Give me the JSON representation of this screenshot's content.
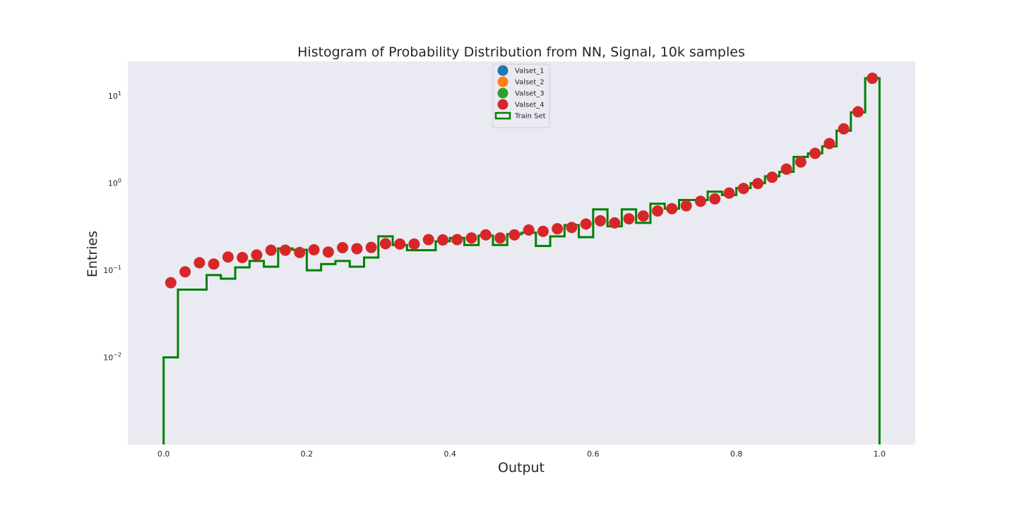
{
  "chart_data": {
    "type": "scatter",
    "title": "Histogram of Probability Distribution from NN, Signal, 10k samples",
    "xlabel": "Output",
    "ylabel": "Entries",
    "xlim": [
      -0.05,
      1.05
    ],
    "ylim": [
      0.001,
      25
    ],
    "yscale": "log",
    "grid": false,
    "background_color": "#eaeaf2",
    "legend_position": "top-center",
    "x_ticks": [
      {
        "value": 0.0,
        "label": "0.0"
      },
      {
        "value": 0.2,
        "label": "0.2"
      },
      {
        "value": 0.4,
        "label": "0.4"
      },
      {
        "value": 0.6,
        "label": "0.6"
      },
      {
        "value": 0.8,
        "label": "0.8"
      },
      {
        "value": 1.0,
        "label": "1.0"
      }
    ],
    "y_ticks": [
      {
        "value": 0.01,
        "base": "10",
        "exp": "−2"
      },
      {
        "value": 0.1,
        "base": "10",
        "exp": "−1"
      },
      {
        "value": 1,
        "base": "10",
        "exp": "0"
      },
      {
        "value": 10,
        "base": "10",
        "exp": "1"
      }
    ],
    "bin_edges": [
      0.0,
      0.02,
      0.04,
      0.06,
      0.08,
      0.1,
      0.12,
      0.14,
      0.16,
      0.18,
      0.2,
      0.22,
      0.24,
      0.26,
      0.28,
      0.3,
      0.32,
      0.34,
      0.36,
      0.38,
      0.4,
      0.42,
      0.44,
      0.46,
      0.48,
      0.5,
      0.52,
      0.54,
      0.56,
      0.58,
      0.6,
      0.62,
      0.64,
      0.66,
      0.68,
      0.7,
      0.72,
      0.74,
      0.76,
      0.78,
      0.8,
      0.82,
      0.84,
      0.86,
      0.88,
      0.9,
      0.92,
      0.94,
      0.96,
      0.98,
      1.0
    ],
    "series": [
      {
        "name": "Valset_1",
        "kind": "points",
        "color": "#1f77b4",
        "x": [],
        "y": []
      },
      {
        "name": "Valset_2",
        "kind": "points",
        "color": "#ff7f0e",
        "x": [],
        "y": []
      },
      {
        "name": "Valset_3",
        "kind": "points",
        "color": "#2ca02c",
        "x": [],
        "y": []
      },
      {
        "name": "Valset_4",
        "kind": "points",
        "color": "#d62728",
        "x": [
          0.01,
          0.03,
          0.05,
          0.07,
          0.09,
          0.11,
          0.13,
          0.15,
          0.17,
          0.19,
          0.21,
          0.23,
          0.25,
          0.27,
          0.29,
          0.31,
          0.33,
          0.35,
          0.37,
          0.39,
          0.41,
          0.43,
          0.45,
          0.47,
          0.49,
          0.51,
          0.53,
          0.55,
          0.57,
          0.59,
          0.61,
          0.63,
          0.65,
          0.67,
          0.69,
          0.71,
          0.73,
          0.75,
          0.77,
          0.79,
          0.81,
          0.83,
          0.85,
          0.87,
          0.89,
          0.91,
          0.93,
          0.95,
          0.97,
          0.99
        ],
        "y": [
          0.072,
          0.096,
          0.122,
          0.118,
          0.142,
          0.14,
          0.15,
          0.17,
          0.17,
          0.16,
          0.172,
          0.162,
          0.182,
          0.177,
          0.183,
          0.202,
          0.2,
          0.2,
          0.225,
          0.223,
          0.225,
          0.235,
          0.255,
          0.235,
          0.255,
          0.29,
          0.28,
          0.3,
          0.31,
          0.34,
          0.37,
          0.35,
          0.39,
          0.42,
          0.48,
          0.51,
          0.55,
          0.62,
          0.66,
          0.77,
          0.87,
          0.99,
          1.17,
          1.45,
          1.75,
          2.2,
          2.85,
          4.2,
          6.6,
          16.0
        ]
      },
      {
        "name": "Train Set",
        "kind": "step",
        "color": "#008000",
        "values": [
          0.01,
          0.06,
          0.06,
          0.088,
          0.08,
          0.108,
          0.128,
          0.11,
          0.178,
          0.172,
          0.1,
          0.118,
          0.128,
          0.11,
          0.14,
          0.245,
          0.195,
          0.17,
          0.17,
          0.215,
          0.235,
          0.195,
          0.25,
          0.195,
          0.26,
          0.27,
          0.19,
          0.245,
          0.33,
          0.24,
          0.5,
          0.32,
          0.5,
          0.35,
          0.58,
          0.51,
          0.64,
          0.64,
          0.8,
          0.73,
          0.88,
          1.0,
          1.2,
          1.35,
          2.0,
          2.2,
          2.65,
          4.0,
          6.5,
          16.0
        ]
      }
    ]
  }
}
